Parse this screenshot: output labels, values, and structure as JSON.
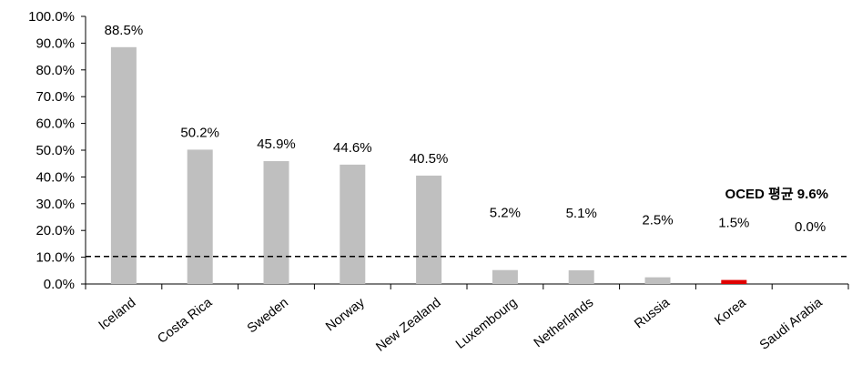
{
  "chart_data": {
    "type": "bar",
    "categories": [
      "Iceland",
      "Costa Rica",
      "Sweden",
      "Norway",
      "New Zealand",
      "Luxembourg",
      "Netherlands",
      "Russia",
      "Korea",
      "Saudi Arabia"
    ],
    "values": [
      88.5,
      50.2,
      45.9,
      44.6,
      40.5,
      5.2,
      5.1,
      2.5,
      1.5,
      0.0
    ],
    "data_labels": [
      "88.5%",
      "50.2%",
      "45.9%",
      "44.6%",
      "40.5%",
      "5.2%",
      "5.1%",
      "2.5%",
      "1.5%",
      "0.0%"
    ],
    "ylim": [
      0,
      100
    ],
    "yticks": [
      0,
      10,
      20,
      30,
      40,
      50,
      60,
      70,
      80,
      90,
      100
    ],
    "ytick_labels": [
      "0.0%",
      "10.0%",
      "20.0%",
      "30.0%",
      "40.0%",
      "50.0%",
      "60.0%",
      "70.0%",
      "80.0%",
      "90.0%",
      "100.0%"
    ],
    "reference_line": {
      "value": 9.6,
      "label": "OCED 평균 9.6%",
      "style": "dashed"
    },
    "grid": false,
    "legend": "none",
    "colors": {
      "bar": "#bfbfbf",
      "highlight": "#e00000",
      "highlight_category": "Korea",
      "axis": "#000000"
    }
  }
}
